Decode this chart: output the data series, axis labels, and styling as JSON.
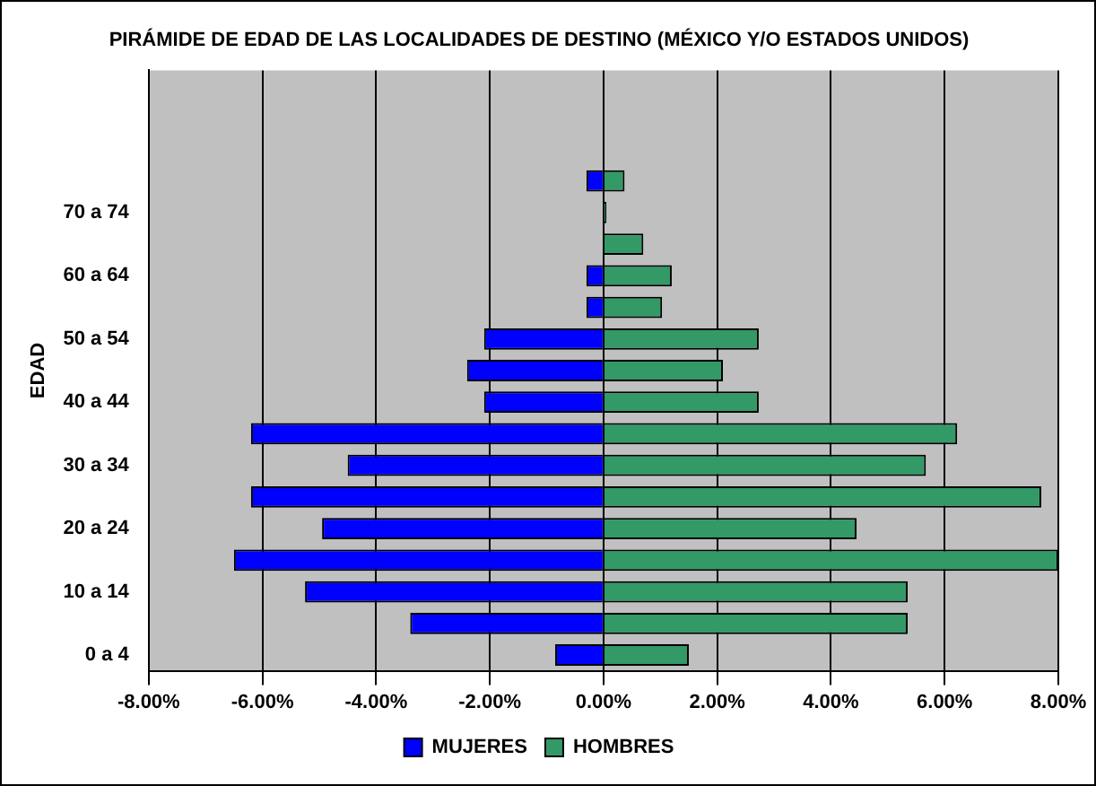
{
  "chart_data": {
    "type": "bar",
    "orientation": "horizontal",
    "stacked": true,
    "title": "PIRÁMIDE DE EDAD DE LAS LOCALIDADES DE DESTINO (MÉXICO Y/O ESTADOS UNIDOS)",
    "ylabel": "EDAD",
    "categories": [
      null,
      null,
      null,
      null,
      "70 a 74",
      null,
      "60 a 64",
      null,
      "50 a 54",
      null,
      "40 a 44",
      null,
      "30 a 34",
      null,
      "20 a 24",
      null,
      "10 a 14",
      null,
      "0 a 4"
    ],
    "series": [
      {
        "name": "MUJERES",
        "color": "#0000ff",
        "values": [
          0,
          0,
          0,
          -0.3,
          0,
          0,
          -0.3,
          -0.3,
          -2.1,
          -2.4,
          -2.1,
          -6.2,
          -4.5,
          -6.2,
          -4.95,
          -6.5,
          -5.25,
          -3.4,
          -0.85
        ]
      },
      {
        "name": "HOMBRES",
        "color": "#339966",
        "values": [
          0,
          0,
          0,
          0.37,
          0.05,
          0.7,
          1.2,
          1.03,
          2.73,
          2.1,
          2.73,
          6.22,
          5.67,
          7.7,
          4.45,
          8.0,
          5.35,
          5.35,
          1.5
        ]
      }
    ],
    "xlim": [
      -8,
      8
    ],
    "xticks": [
      {
        "value": -8,
        "label": "-8.00%"
      },
      {
        "value": -6,
        "label": "-6.00%"
      },
      {
        "value": -4,
        "label": "-4.00%"
      },
      {
        "value": -2,
        "label": "-2.00%"
      },
      {
        "value": 0,
        "label": "0.00%"
      },
      {
        "value": 2,
        "label": "2.00%"
      },
      {
        "value": 4,
        "label": "4.00%"
      },
      {
        "value": 6,
        "label": "6.00%"
      },
      {
        "value": 8,
        "label": "8.00%"
      }
    ],
    "grid": "x",
    "legend": "bottom"
  }
}
